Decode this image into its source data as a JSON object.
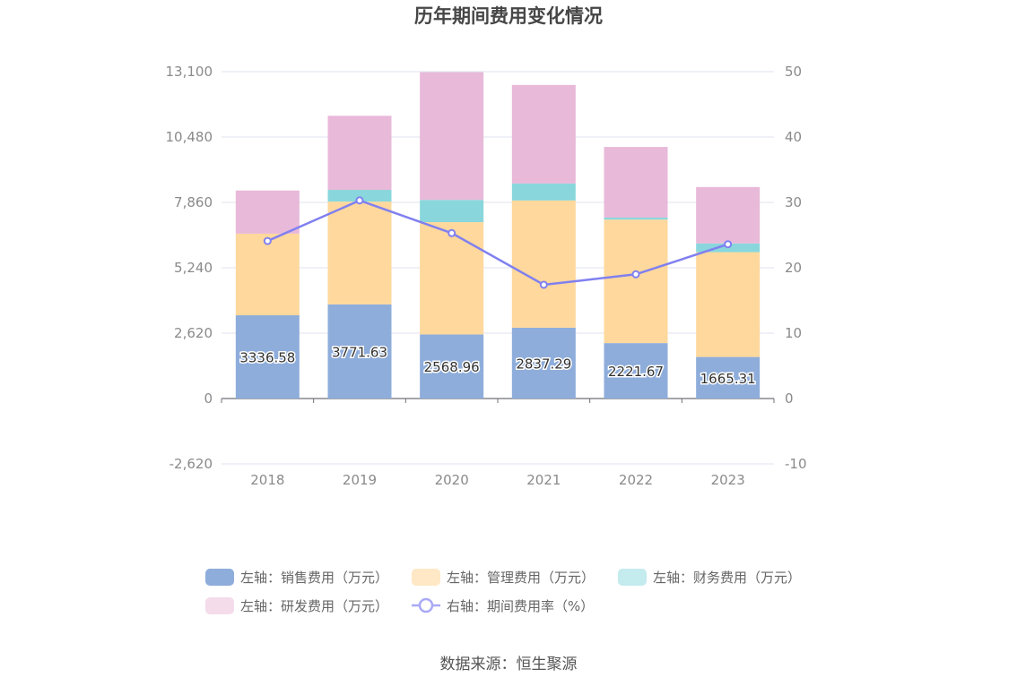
{
  "chart_data": {
    "type": "bar",
    "stacked": true,
    "title": "历年期间费用变化情况",
    "categories": [
      "2018",
      "2019",
      "2020",
      "2021",
      "2022",
      "2023"
    ],
    "y_left": {
      "min": -2620,
      "max": 13100,
      "ticks": [
        "-2,620",
        "0",
        "2,620",
        "5,240",
        "7,860",
        "10,480",
        "13,100"
      ],
      "tick_values": [
        -2620,
        0,
        2620,
        5240,
        7860,
        10480,
        13100
      ]
    },
    "y_right": {
      "min": -10,
      "max": 50,
      "ticks": [
        "-10",
        "0",
        "10",
        "20",
        "30",
        "40",
        "50"
      ],
      "tick_values": [
        -10,
        0,
        10,
        20,
        30,
        40,
        50
      ]
    },
    "grid": true,
    "series": [
      {
        "name": "左轴：销售费用（万元）",
        "axis": "left",
        "kind": "bar",
        "color": "#8eaddb",
        "values": [
          3336.58,
          3771.63,
          2568.96,
          2837.29,
          2221.67,
          1665.31
        ],
        "labels": [
          "3336.58",
          "3771.63",
          "2568.96",
          "2837.29",
          "2221.67",
          "1665.31"
        ]
      },
      {
        "name": "左轴：管理费用（万元）",
        "axis": "left",
        "kind": "bar",
        "color": "#fed89c",
        "values": [
          3270,
          4120,
          4500,
          5100,
          4950,
          4200
        ]
      },
      {
        "name": "左轴：财务费用（万元）",
        "axis": "left",
        "kind": "bar",
        "color": "#89d7dc",
        "values": [
          0,
          470,
          890,
          680,
          80,
          350
        ]
      },
      {
        "name": "左轴：研发费用（万元）",
        "axis": "left",
        "kind": "bar",
        "color": "#e8b9d9",
        "values": [
          1730,
          2970,
          5120,
          3950,
          2830,
          2260
        ]
      },
      {
        "name": "右轴：期间费用率（%）",
        "axis": "right",
        "kind": "line",
        "color": "#8080f0",
        "values": [
          24.1,
          30.3,
          25.3,
          17.4,
          19.0,
          23.6
        ]
      }
    ],
    "legend": {
      "position": "bottom",
      "items": [
        {
          "label": "左轴：销售费用（万元）",
          "color": "#8eaddb",
          "shape": "rect"
        },
        {
          "label": "左轴：管理费用（万元）",
          "color": "#fee8c5",
          "shape": "rect"
        },
        {
          "label": "左轴：财务费用（万元）",
          "color": "#c4ebee",
          "shape": "rect"
        },
        {
          "label": "左轴：研发费用（万元）",
          "color": "#f4dceb",
          "shape": "rect"
        },
        {
          "label": "右轴：期间费用率（%）",
          "color": "#a9a9f6",
          "shape": "line"
        }
      ]
    },
    "source": "数据来源：恒生聚源"
  }
}
